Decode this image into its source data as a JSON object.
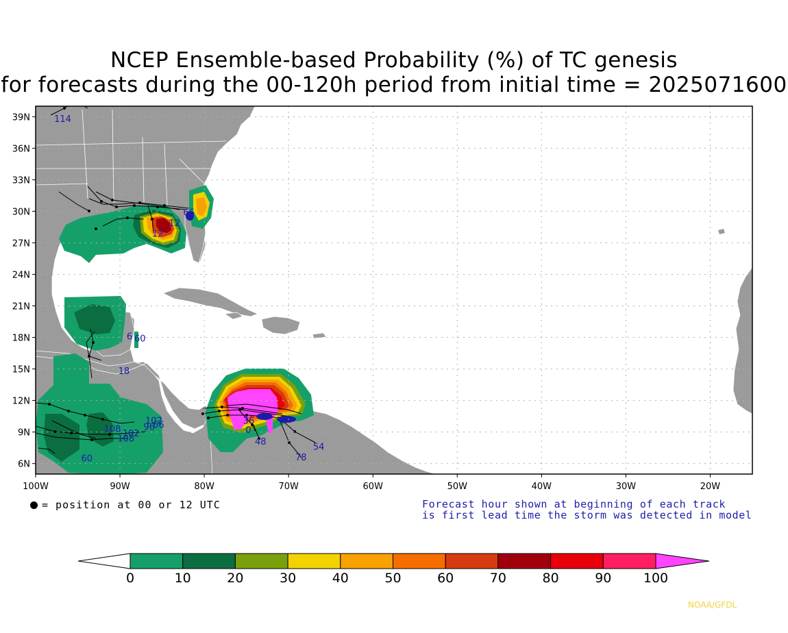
{
  "title_line1": "NCEP Ensemble-based Probability (%) of TC genesis",
  "title_line2": "for forecasts during the 00-120h period from initial time = 2025071600",
  "map": {
    "lon_range": [
      -100,
      -15
    ],
    "lat_range": [
      5,
      40
    ],
    "lat_ticks": [
      "39N",
      "36N",
      "33N",
      "30N",
      "27N",
      "24N",
      "21N",
      "18N",
      "15N",
      "12N",
      "9N",
      "6N"
    ],
    "lat_values": [
      39,
      36,
      33,
      30,
      27,
      24,
      21,
      18,
      15,
      12,
      9,
      6
    ],
    "lon_ticks": [
      "100W",
      "90W",
      "80W",
      "70W",
      "60W",
      "50W",
      "40W",
      "30W",
      "20W"
    ],
    "lon_values": [
      -100,
      -90,
      -80,
      -70,
      -60,
      -50,
      -40,
      -30,
      -20
    ],
    "land_color": "#9b9b9b",
    "ocean_color": "#ffffff"
  },
  "track_labels": [
    {
      "text": "114",
      "lon": -97.8,
      "lat": 38.5
    },
    {
      "text": "12",
      "lon": -84.2,
      "lat": 28.6
    },
    {
      "text": "12",
      "lon": -86.2,
      "lat": 27.6
    },
    {
      "text": "66",
      "lon": -82.5,
      "lat": 29.6
    },
    {
      "text": "60",
      "lon": -88.3,
      "lat": 17.6
    },
    {
      "text": "6",
      "lon": -89.2,
      "lat": 17.8
    },
    {
      "text": "18",
      "lon": -90.2,
      "lat": 14.5
    },
    {
      "text": "60",
      "lon": -94.6,
      "lat": 6.2
    },
    {
      "text": "108",
      "lon": -91.9,
      "lat": 9.0
    },
    {
      "text": "102",
      "lon": -89.7,
      "lat": 8.6
    },
    {
      "text": "108",
      "lon": -90.3,
      "lat": 8.1
    },
    {
      "text": "96",
      "lon": -87.2,
      "lat": 9.2
    },
    {
      "text": "102",
      "lon": -87.0,
      "lat": 9.8
    },
    {
      "text": "66",
      "lon": -86.1,
      "lat": 9.4
    },
    {
      "text": "0",
      "lon": -75.1,
      "lat": 8.9
    },
    {
      "text": "48",
      "lon": -74.0,
      "lat": 7.8
    },
    {
      "text": "54",
      "lon": -67.1,
      "lat": 7.3
    },
    {
      "text": "78",
      "lon": -69.2,
      "lat": 6.3
    },
    {
      "text": "24",
      "lon": -71.0,
      "lat": 9.9
    },
    {
      "text": "36",
      "lon": -75.4,
      "lat": 9.8
    }
  ],
  "legend_left": "= position at 00 or 12 UTC",
  "legend_right_line1": "Forecast hour shown at beginning of each track",
  "legend_right_line2": "is first lead time the storm was detected in model",
  "colorbar": {
    "labels": [
      "0",
      "10",
      "20",
      "30",
      "40",
      "50",
      "60",
      "70",
      "80",
      "90",
      "100"
    ],
    "colors": [
      "#15a06a",
      "#0b6e40",
      "#7aa00c",
      "#f2d200",
      "#f7a200",
      "#f66d00",
      "#d63a10",
      "#a0000c",
      "#e8000a",
      "#ff1e60",
      "#ff44ff"
    ]
  },
  "credit": "NOAA/GFDL"
}
